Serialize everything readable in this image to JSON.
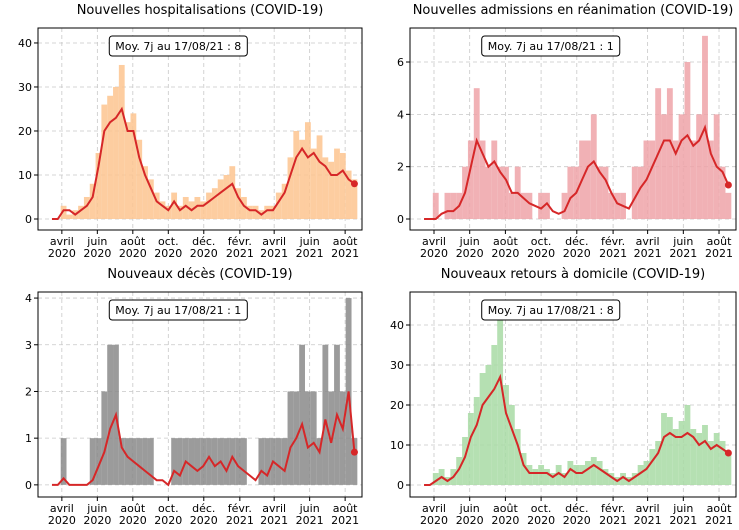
{
  "chart_data": [
    {
      "type": "combo",
      "title": "Nouvelles hospitalisations (COVID-19)",
      "annotation": "Moy. 7j au 17/08/21 : 8",
      "x": [
        0,
        10,
        20,
        30,
        40,
        50,
        60,
        70,
        80,
        90,
        100,
        110,
        120,
        130,
        140,
        150,
        160,
        170,
        180,
        190,
        200,
        210,
        220,
        230,
        240,
        250,
        260,
        270,
        280,
        290,
        300,
        310,
        320,
        330,
        340,
        350,
        360,
        370,
        380,
        390,
        400,
        410,
        420,
        430,
        440,
        450,
        460,
        470,
        480,
        490,
        500,
        510,
        520
      ],
      "series": [
        {
          "type": "bar",
          "color": "#fdc48f",
          "values": [
            0,
            0,
            3,
            1,
            2,
            3,
            5,
            8,
            15,
            26,
            28,
            30,
            35,
            22,
            24,
            18,
            12,
            9,
            6,
            4,
            3,
            6,
            3,
            5,
            4,
            5,
            4,
            6,
            7,
            9,
            10,
            12,
            7,
            5,
            3,
            3,
            2,
            3,
            3,
            6,
            8,
            14,
            20,
            18,
            22,
            16,
            19,
            14,
            13,
            16,
            15,
            11,
            9
          ]
        },
        {
          "type": "line",
          "color": "#d62728",
          "values": [
            0,
            0,
            2,
            2,
            1,
            2,
            3,
            5,
            12,
            20,
            22,
            23,
            25,
            20,
            20,
            14,
            10,
            7,
            4,
            3,
            2,
            4,
            2,
            3,
            2,
            3,
            3,
            4,
            5,
            6,
            7,
            8,
            5,
            3,
            2,
            2,
            1,
            2,
            2,
            4,
            6,
            10,
            14,
            16,
            14,
            15,
            13,
            12,
            10,
            10,
            11,
            9,
            8
          ]
        }
      ],
      "xlim": [
        -24,
        533
      ],
      "ylim": [
        -2.5,
        43.4
      ],
      "yticks": [
        0,
        10,
        20,
        30,
        40
      ],
      "xticks": [
        {
          "value": 17,
          "label": "avril\n2020"
        },
        {
          "value": 78,
          "label": "juin\n2020"
        },
        {
          "value": 139,
          "label": "août\n2020"
        },
        {
          "value": 200,
          "label": "oct.\n2020"
        },
        {
          "value": 261,
          "label": "déc.\n2020"
        },
        {
          "value": 323,
          "label": "févr.\n2021"
        },
        {
          "value": 382,
          "label": "avril\n2021"
        },
        {
          "value": 443,
          "label": "juin\n2021"
        },
        {
          "value": 504,
          "label": "août\n2021"
        }
      ],
      "grid": true
    },
    {
      "type": "combo",
      "title": "Nouvelles admissions en réanimation (COVID-19)",
      "annotation": "Moy. 7j au 17/08/21 : 1",
      "x": [
        0,
        10,
        20,
        30,
        40,
        50,
        60,
        70,
        80,
        90,
        100,
        110,
        120,
        130,
        140,
        150,
        160,
        170,
        180,
        190,
        200,
        210,
        220,
        230,
        240,
        250,
        260,
        270,
        280,
        290,
        300,
        310,
        320,
        330,
        340,
        350,
        360,
        370,
        380,
        390,
        400,
        410,
        420,
        430,
        440,
        450,
        460,
        470,
        480,
        490,
        500,
        510,
        520
      ],
      "series": [
        {
          "type": "bar",
          "color": "#eea3a8",
          "values": [
            0,
            0,
            1,
            0,
            1,
            1,
            1,
            2,
            3,
            5,
            3,
            2,
            3,
            2,
            2,
            1,
            2,
            1,
            1,
            0,
            1,
            1,
            0,
            0,
            1,
            2,
            2,
            3,
            3,
            4,
            2,
            2,
            1,
            1,
            1,
            0,
            2,
            2,
            3,
            3,
            5,
            4,
            5,
            3,
            4,
            6,
            3,
            4,
            7,
            3,
            4,
            2,
            1
          ]
        },
        {
          "type": "line",
          "color": "#d62728",
          "values": [
            0,
            0,
            0,
            0.2,
            0.3,
            0.3,
            0.5,
            1,
            2,
            3,
            2.5,
            2,
            2.2,
            1.8,
            1.5,
            1,
            1,
            0.8,
            0.6,
            0.5,
            0.4,
            0.6,
            0.3,
            0.2,
            0.3,
            0.8,
            1,
            1.5,
            2,
            2.2,
            1.8,
            1.5,
            1,
            0.6,
            0.5,
            0.4,
            0.8,
            1.2,
            1.5,
            2,
            2.5,
            3,
            3,
            2.5,
            3,
            3.2,
            2.8,
            3,
            3.5,
            2.5,
            2,
            1.8,
            1.3
          ]
        }
      ],
      "xlim": [
        -24,
        533
      ],
      "ylim": [
        -0.42,
        7.3
      ],
      "yticks": [
        0,
        2,
        4,
        6
      ],
      "xticks": [
        {
          "value": 17,
          "label": "avril\n2020"
        },
        {
          "value": 78,
          "label": "juin\n2020"
        },
        {
          "value": 139,
          "label": "août\n2020"
        },
        {
          "value": 200,
          "label": "oct.\n2020"
        },
        {
          "value": 261,
          "label": "déc.\n2020"
        },
        {
          "value": 323,
          "label": "févr.\n2021"
        },
        {
          "value": 382,
          "label": "avril\n2021"
        },
        {
          "value": 443,
          "label": "juin\n2021"
        },
        {
          "value": 504,
          "label": "août\n2021"
        }
      ],
      "grid": true
    },
    {
      "type": "combo",
      "title": "Nouveaux décès (COVID-19)",
      "annotation": "Moy. 7j au 17/08/21 : 1",
      "x": [
        0,
        10,
        20,
        30,
        40,
        50,
        60,
        70,
        80,
        90,
        100,
        110,
        120,
        130,
        140,
        150,
        160,
        170,
        180,
        190,
        200,
        210,
        220,
        230,
        240,
        250,
        260,
        270,
        280,
        290,
        300,
        310,
        320,
        330,
        340,
        350,
        360,
        370,
        380,
        390,
        400,
        410,
        420,
        430,
        440,
        450,
        460,
        470,
        480,
        490,
        500,
        510,
        520
      ],
      "series": [
        {
          "type": "bar",
          "color": "#8a8a8a",
          "values": [
            0,
            0,
            1,
            0,
            0,
            0,
            0,
            1,
            1,
            2,
            3,
            3,
            1,
            1,
            1,
            1,
            1,
            1,
            0,
            0,
            0,
            1,
            1,
            1,
            1,
            1,
            1,
            1,
            1,
            1,
            1,
            1,
            1,
            1,
            0,
            0,
            1,
            1,
            1,
            1,
            1,
            2,
            2,
            3,
            2,
            2,
            1,
            3,
            2,
            3,
            2,
            4,
            1
          ]
        },
        {
          "type": "line",
          "color": "#d62728",
          "values": [
            0,
            0,
            0.14,
            0,
            0,
            0,
            0,
            0.1,
            0.4,
            0.7,
            1.2,
            1.5,
            0.8,
            0.6,
            0.5,
            0.4,
            0.3,
            0.2,
            0.1,
            0.1,
            0,
            0.3,
            0.2,
            0.5,
            0.4,
            0.3,
            0.4,
            0.6,
            0.4,
            0.5,
            0.3,
            0.6,
            0.4,
            0.3,
            0.2,
            0.1,
            0.3,
            0.2,
            0.5,
            0.4,
            0.3,
            0.8,
            1.0,
            1.3,
            0.8,
            0.9,
            0.7,
            1.4,
            0.9,
            1.5,
            1.2,
            2.0,
            0.7
          ]
        }
      ],
      "xlim": [
        -24,
        533
      ],
      "ylim": [
        -0.26,
        4.13
      ],
      "yticks": [
        0,
        1,
        2,
        3,
        4
      ],
      "xticks": [
        {
          "value": 17,
          "label": "avril\n2020"
        },
        {
          "value": 78,
          "label": "juin\n2020"
        },
        {
          "value": 139,
          "label": "août\n2020"
        },
        {
          "value": 200,
          "label": "oct.\n2020"
        },
        {
          "value": 261,
          "label": "déc.\n2020"
        },
        {
          "value": 323,
          "label": "févr.\n2021"
        },
        {
          "value": 382,
          "label": "avril\n2021"
        },
        {
          "value": 443,
          "label": "juin\n2021"
        },
        {
          "value": 504,
          "label": "août\n2021"
        }
      ],
      "grid": true
    },
    {
      "type": "combo",
      "title": "Nouveaux retours à domicile (COVID-19)",
      "annotation": "Moy. 7j au 17/08/21 : 8",
      "x": [
        0,
        10,
        20,
        30,
        40,
        50,
        60,
        70,
        80,
        90,
        100,
        110,
        120,
        130,
        140,
        150,
        160,
        170,
        180,
        190,
        200,
        210,
        220,
        230,
        240,
        250,
        260,
        270,
        280,
        290,
        300,
        310,
        320,
        330,
        340,
        350,
        360,
        370,
        380,
        390,
        400,
        410,
        420,
        430,
        440,
        450,
        460,
        470,
        480,
        490,
        500,
        510,
        520
      ],
      "series": [
        {
          "type": "bar",
          "color": "#a8dba4",
          "values": [
            0,
            0,
            3,
            4,
            2,
            4,
            7,
            12,
            18,
            22,
            28,
            30,
            35,
            42,
            25,
            20,
            14,
            8,
            5,
            4,
            5,
            4,
            3,
            5,
            3,
            6,
            5,
            5,
            6,
            7,
            6,
            4,
            3,
            2,
            3,
            2,
            3,
            5,
            6,
            9,
            11,
            18,
            17,
            14,
            16,
            20,
            14,
            13,
            15,
            11,
            13,
            11,
            8
          ]
        },
        {
          "type": "line",
          "color": "#d62728",
          "values": [
            0,
            0,
            1,
            2,
            1,
            2,
            4,
            7,
            12,
            15,
            20,
            22,
            24,
            27,
            18,
            14,
            10,
            5,
            3,
            3,
            3,
            3,
            2,
            3,
            2,
            4,
            3,
            3,
            4,
            5,
            4,
            3,
            2,
            1,
            2,
            1,
            2,
            3,
            4,
            6,
            8,
            12,
            13,
            12,
            12,
            13,
            12,
            10,
            11,
            9,
            10,
            9,
            8
          ]
        }
      ],
      "xlim": [
        -24,
        533
      ],
      "ylim": [
        -3,
        48.25
      ],
      "yticks": [
        0,
        10,
        20,
        30,
        40
      ],
      "xticks": [
        {
          "value": 17,
          "label": "avril\n2020"
        },
        {
          "value": 78,
          "label": "juin\n2020"
        },
        {
          "value": 139,
          "label": "août\n2020"
        },
        {
          "value": 200,
          "label": "oct.\n2020"
        },
        {
          "value": 261,
          "label": "déc.\n2020"
        },
        {
          "value": 323,
          "label": "févr.\n2021"
        },
        {
          "value": 382,
          "label": "avril\n2021"
        },
        {
          "value": 443,
          "label": "juin\n2021"
        },
        {
          "value": 504,
          "label": "août\n2021"
        }
      ],
      "grid": true
    }
  ]
}
